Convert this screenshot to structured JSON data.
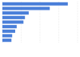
{
  "chart_data": {
    "type": "bar",
    "orientation": "horizontal",
    "categories": [
      null,
      null,
      null,
      null,
      null,
      null,
      null,
      null,
      null
    ],
    "values": [
      87,
      63,
      35,
      30,
      28,
      19,
      17,
      13,
      12
    ],
    "color": "#4a7fd9",
    "xlim": [
      0,
      100
    ],
    "xticks": [
      0,
      25,
      50,
      75,
      100
    ],
    "grid": true,
    "tick_labels": false
  }
}
